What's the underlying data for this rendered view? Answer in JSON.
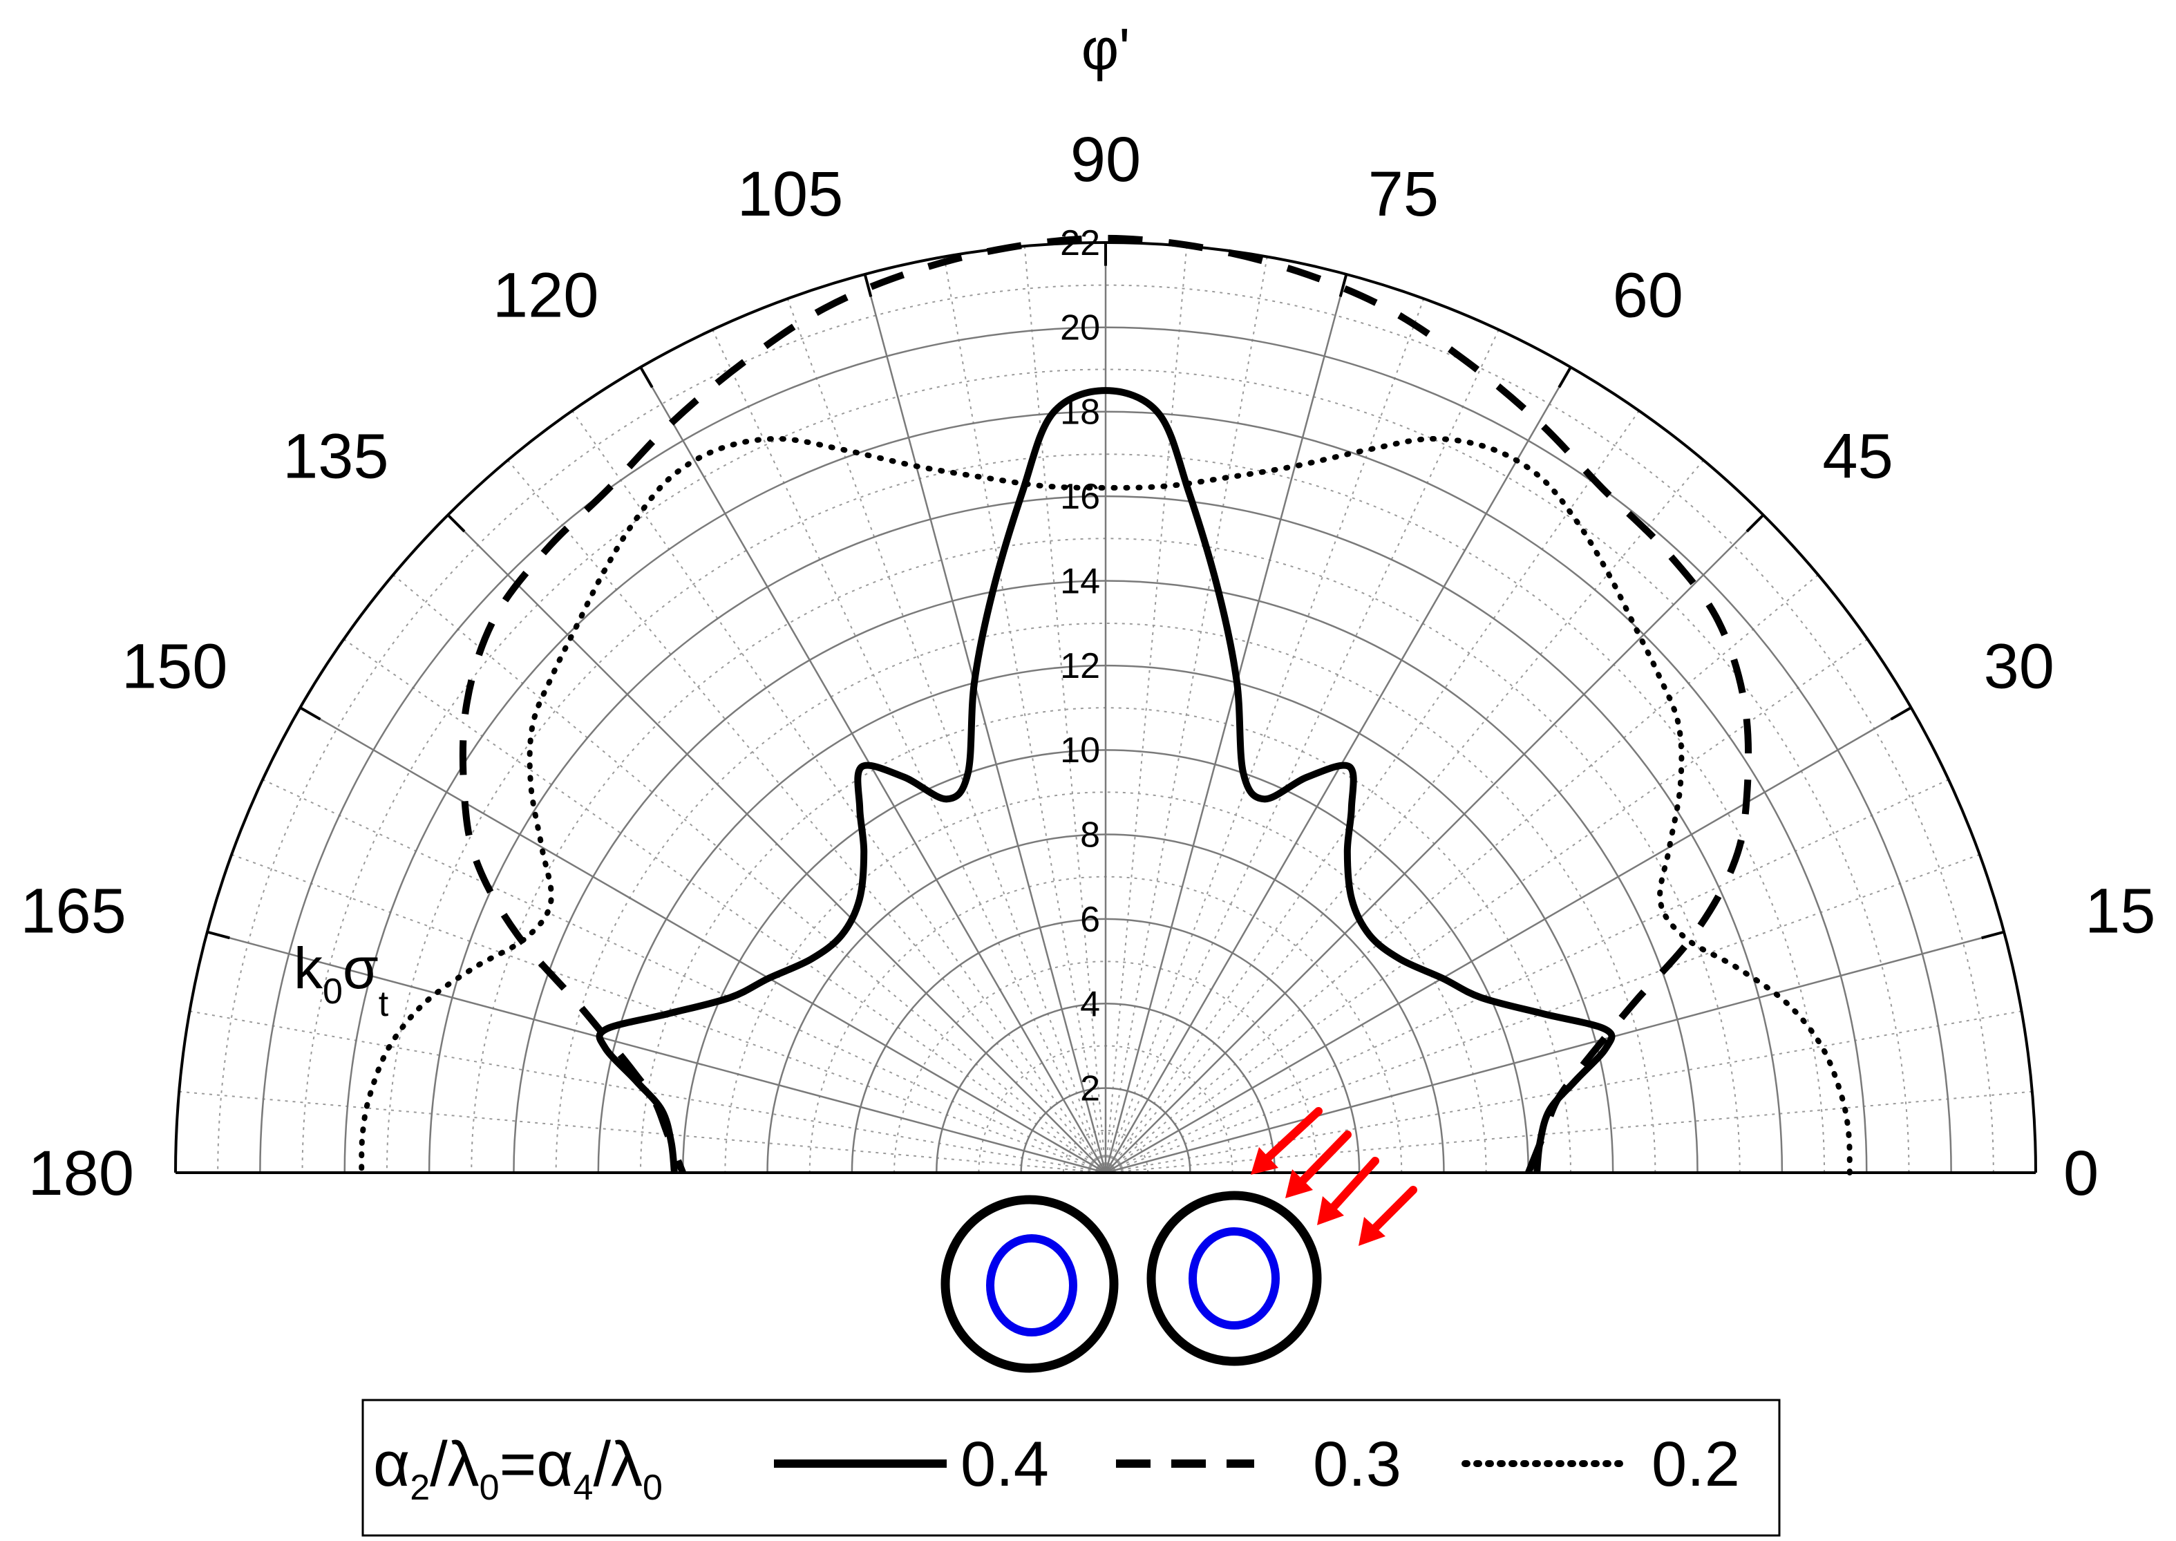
{
  "chart_data": {
    "type": "polar-line",
    "angular_axis": {
      "label": "φ'",
      "unit": "degrees",
      "range": [
        0,
        180
      ],
      "tick_values": [
        0,
        15,
        30,
        45,
        60,
        75,
        90,
        105,
        120,
        135,
        150,
        165,
        180
      ],
      "tick_labels": [
        "0",
        "15",
        "30",
        "45",
        "60",
        "75",
        "90",
        "105",
        "120",
        "135",
        "150",
        "165",
        "180"
      ]
    },
    "radial_axis": {
      "label_main": "k",
      "label_sub1": "0",
      "label_greek": "σ",
      "label_sub2": "t",
      "range": [
        0,
        22
      ],
      "tick_values": [
        2,
        4,
        6,
        8,
        10,
        12,
        14,
        16,
        18,
        20,
        22
      ],
      "tick_labels": [
        "2",
        "4",
        "6",
        "8",
        "10",
        "12",
        "14",
        "16",
        "18",
        "20",
        "22"
      ],
      "minor_step": 1
    },
    "grid": true,
    "legend": {
      "placement": "bottom-center",
      "prefix": {
        "a1": "α",
        "s1": "2",
        "b1": "/λ",
        "s2": "0",
        "eq": "=α",
        "s3": "4",
        "b2": "/λ",
        "s4": "0"
      }
    },
    "series": [
      {
        "name": "0.4",
        "style": "solid",
        "color": "#000000",
        "points": [
          [
            0,
            10.2
          ],
          [
            4,
            10.3
          ],
          [
            8,
            10.6
          ],
          [
            11,
            11.3
          ],
          [
            14,
            12.2
          ],
          [
            16,
            12.3
          ],
          [
            20,
            11.0
          ],
          [
            25,
            9.8
          ],
          [
            30,
            9.2
          ],
          [
            36,
            8.6
          ],
          [
            42,
            8.4
          ],
          [
            48,
            8.7
          ],
          [
            53,
            9.5
          ],
          [
            56,
            10.4
          ],
          [
            59,
            11.2
          ],
          [
            63,
            10.5
          ],
          [
            67,
            9.6
          ],
          [
            71,
            10.0
          ],
          [
            75,
            12.0
          ],
          [
            79,
            14.0
          ],
          [
            83,
            16.2
          ],
          [
            86,
            18.0
          ],
          [
            90,
            18.5
          ],
          [
            94,
            18.0
          ],
          [
            97,
            16.2
          ],
          [
            101,
            14.0
          ],
          [
            105,
            12.0
          ],
          [
            109,
            10.0
          ],
          [
            113,
            9.6
          ],
          [
            117,
            10.5
          ],
          [
            121,
            11.2
          ],
          [
            124,
            10.4
          ],
          [
            127,
            9.5
          ],
          [
            132,
            8.7
          ],
          [
            138,
            8.4
          ],
          [
            144,
            8.6
          ],
          [
            150,
            9.2
          ],
          [
            155,
            9.8
          ],
          [
            160,
            11.0
          ],
          [
            164,
            12.3
          ],
          [
            166,
            12.2
          ],
          [
            169,
            11.3
          ],
          [
            172,
            10.6
          ],
          [
            176,
            10.3
          ],
          [
            180,
            10.2
          ]
        ]
      },
      {
        "name": "0.3",
        "style": "dashed",
        "color": "#000000",
        "points": [
          [
            0,
            10.0
          ],
          [
            5,
            10.4
          ],
          [
            9,
            10.8
          ],
          [
            12,
            11.4
          ],
          [
            15,
            12.2
          ],
          [
            18,
            13.2
          ],
          [
            22,
            15.0
          ],
          [
            26,
            16.5
          ],
          [
            30,
            17.5
          ],
          [
            36,
            18.7
          ],
          [
            42,
            19.5
          ],
          [
            48,
            19.8
          ],
          [
            54,
            20.0
          ],
          [
            60,
            20.5
          ],
          [
            66,
            21.0
          ],
          [
            72,
            21.5
          ],
          [
            78,
            21.8
          ],
          [
            84,
            22.0
          ],
          [
            90,
            22.1
          ],
          [
            96,
            22.0
          ],
          [
            102,
            21.8
          ],
          [
            108,
            21.5
          ],
          [
            114,
            21.0
          ],
          [
            120,
            20.5
          ],
          [
            126,
            20.0
          ],
          [
            132,
            19.8
          ],
          [
            138,
            19.5
          ],
          [
            144,
            18.7
          ],
          [
            150,
            17.5
          ],
          [
            154,
            16.5
          ],
          [
            158,
            15.0
          ],
          [
            162,
            13.2
          ],
          [
            165,
            12.2
          ],
          [
            168,
            11.4
          ],
          [
            171,
            10.8
          ],
          [
            175,
            10.4
          ],
          [
            180,
            10.0
          ]
        ]
      },
      {
        "name": "0.2",
        "style": "dotted",
        "color": "#000000",
        "points": [
          [
            0,
            17.6
          ],
          [
            3,
            17.6
          ],
          [
            6,
            17.5
          ],
          [
            10,
            17.2
          ],
          [
            14,
            16.6
          ],
          [
            18,
            15.7
          ],
          [
            22,
            14.8
          ],
          [
            26,
            14.6
          ],
          [
            30,
            15.4
          ],
          [
            34,
            16.4
          ],
          [
            38,
            17.2
          ],
          [
            42,
            17.6
          ],
          [
            46,
            18.0
          ],
          [
            50,
            18.5
          ],
          [
            54,
            19.0
          ],
          [
            58,
            19.4
          ],
          [
            62,
            19.4
          ],
          [
            66,
            19.0
          ],
          [
            70,
            18.2
          ],
          [
            75,
            17.3
          ],
          [
            80,
            16.7
          ],
          [
            85,
            16.3
          ],
          [
            90,
            16.2
          ],
          [
            95,
            16.3
          ],
          [
            100,
            16.7
          ],
          [
            105,
            17.3
          ],
          [
            110,
            18.2
          ],
          [
            114,
            19.0
          ],
          [
            118,
            19.4
          ],
          [
            122,
            19.4
          ],
          [
            126,
            19.0
          ],
          [
            130,
            18.5
          ],
          [
            134,
            18.0
          ],
          [
            138,
            17.6
          ],
          [
            142,
            17.2
          ],
          [
            146,
            16.4
          ],
          [
            150,
            15.4
          ],
          [
            154,
            14.6
          ],
          [
            158,
            14.8
          ],
          [
            162,
            15.7
          ],
          [
            166,
            16.6
          ],
          [
            170,
            17.2
          ],
          [
            174,
            17.5
          ],
          [
            177,
            17.6
          ],
          [
            180,
            17.6
          ]
        ]
      }
    ]
  }
}
